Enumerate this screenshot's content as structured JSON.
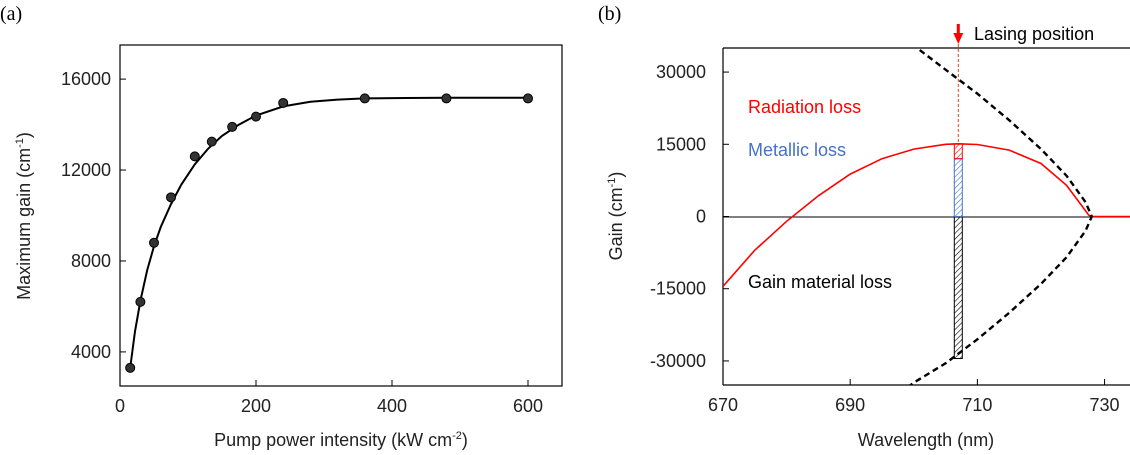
{
  "chart_data": [
    {
      "panel": "(a)",
      "type": "scatter",
      "xlabel_parts": [
        "Pump power intensity (kW cm",
        "-2",
        ")"
      ],
      "ylabel_parts": [
        "Maximum gain (cm",
        "-1",
        ")"
      ],
      "xlim": [
        0,
        650
      ],
      "ylim": [
        2500,
        17500
      ],
      "xticks": [
        0,
        200,
        400,
        600
      ],
      "yticks": [
        4000,
        8000,
        12000,
        16000
      ],
      "grid": false,
      "series": [
        {
          "style": "markers",
          "x": [
            15,
            30,
            50,
            75,
            110,
            135,
            165,
            200,
            240,
            360,
            480,
            600
          ],
          "y": [
            3300,
            6200,
            8800,
            10800,
            12600,
            13250,
            13900,
            14350,
            14950,
            15150,
            15150,
            15150
          ]
        },
        {
          "style": "line",
          "x": [
            15,
            22,
            30,
            40,
            50,
            60,
            75,
            90,
            110,
            130,
            150,
            175,
            200,
            240,
            280,
            320,
            360,
            420,
            480,
            540,
            600
          ],
          "y": [
            3300,
            4900,
            6250,
            7600,
            8650,
            9500,
            10500,
            11350,
            12250,
            12950,
            13500,
            14000,
            14400,
            14800,
            15000,
            15100,
            15150,
            15170,
            15180,
            15180,
            15180
          ]
        }
      ]
    },
    {
      "panel": "(b)",
      "type": "line",
      "xlabel": "Wavelength (nm)",
      "ylabel_parts": [
        "Gain (cm",
        "-1",
        ")"
      ],
      "xlim": [
        670,
        734
      ],
      "ylim": [
        -35000,
        35000
      ],
      "xticks": [
        670,
        690,
        710,
        730
      ],
      "yticks": [
        -30000,
        -15000,
        0,
        15000,
        30000
      ],
      "grid": false,
      "lasing_wavelength": 707,
      "colors": {
        "radiation": "#ff0000",
        "metallic": "#4472c4",
        "material": "#000000",
        "marker": "#e8401c"
      },
      "annotations": {
        "lasing": "Lasing position",
        "radiation": "Radiation loss",
        "metallic": "Metallic loss",
        "material": "Gain material loss"
      },
      "series": [
        {
          "style": "solid-red",
          "x": [
            670,
            675,
            680,
            685,
            690,
            695,
            700,
            705,
            707,
            710,
            715,
            720,
            724,
            726,
            727.5,
            728,
            734
          ],
          "y": [
            -14500,
            -7000,
            -1000,
            4300,
            8800,
            12000,
            14000,
            15000,
            15100,
            14950,
            13800,
            11000,
            6500,
            3000,
            300,
            0,
            0
          ]
        },
        {
          "style": "dashed-black",
          "x": [
            697,
            700,
            705,
            710,
            715,
            720,
            724,
            727,
            728,
            727,
            724,
            720,
            715,
            710,
            705,
            700,
            699
          ],
          "y": [
            38000,
            35500,
            30500,
            25500,
            20000,
            14000,
            8500,
            3000,
            0,
            -3000,
            -8500,
            -14000,
            -20000,
            -25500,
            -30500,
            -34500,
            -35500
          ]
        }
      ],
      "loss_bars": {
        "radiation_range": [
          12000,
          15100
        ],
        "metallic_range": [
          0,
          12000
        ],
        "material_range": [
          -29500,
          0
        ]
      }
    }
  ]
}
